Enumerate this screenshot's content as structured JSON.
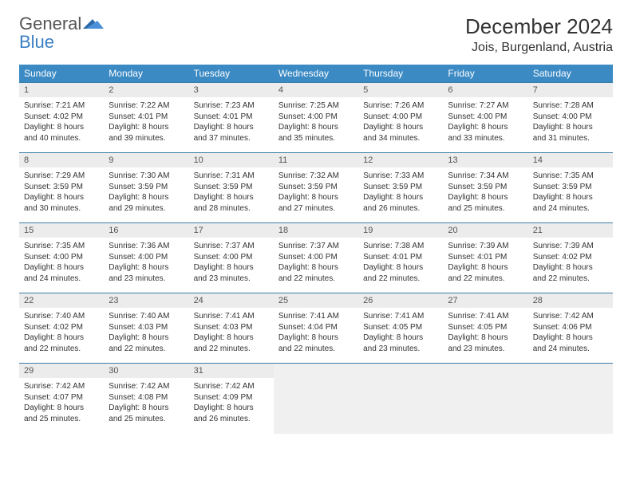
{
  "logo": {
    "line1": "General",
    "line2": "Blue"
  },
  "title": "December 2024",
  "location": "Jois, Burgenland, Austria",
  "colors": {
    "header_bg": "#3b8ac4",
    "header_text": "#ffffff",
    "row_border": "#3b7fa8",
    "daynum_bg": "#ececec",
    "logo_blue": "#3b7fc4",
    "text": "#333333"
  },
  "weekdays": [
    "Sunday",
    "Monday",
    "Tuesday",
    "Wednesday",
    "Thursday",
    "Friday",
    "Saturday"
  ],
  "days": [
    {
      "n": 1,
      "sunrise": "7:21 AM",
      "sunset": "4:02 PM",
      "daylight": "8 hours and 40 minutes."
    },
    {
      "n": 2,
      "sunrise": "7:22 AM",
      "sunset": "4:01 PM",
      "daylight": "8 hours and 39 minutes."
    },
    {
      "n": 3,
      "sunrise": "7:23 AM",
      "sunset": "4:01 PM",
      "daylight": "8 hours and 37 minutes."
    },
    {
      "n": 4,
      "sunrise": "7:25 AM",
      "sunset": "4:00 PM",
      "daylight": "8 hours and 35 minutes."
    },
    {
      "n": 5,
      "sunrise": "7:26 AM",
      "sunset": "4:00 PM",
      "daylight": "8 hours and 34 minutes."
    },
    {
      "n": 6,
      "sunrise": "7:27 AM",
      "sunset": "4:00 PM",
      "daylight": "8 hours and 33 minutes."
    },
    {
      "n": 7,
      "sunrise": "7:28 AM",
      "sunset": "4:00 PM",
      "daylight": "8 hours and 31 minutes."
    },
    {
      "n": 8,
      "sunrise": "7:29 AM",
      "sunset": "3:59 PM",
      "daylight": "8 hours and 30 minutes."
    },
    {
      "n": 9,
      "sunrise": "7:30 AM",
      "sunset": "3:59 PM",
      "daylight": "8 hours and 29 minutes."
    },
    {
      "n": 10,
      "sunrise": "7:31 AM",
      "sunset": "3:59 PM",
      "daylight": "8 hours and 28 minutes."
    },
    {
      "n": 11,
      "sunrise": "7:32 AM",
      "sunset": "3:59 PM",
      "daylight": "8 hours and 27 minutes."
    },
    {
      "n": 12,
      "sunrise": "7:33 AM",
      "sunset": "3:59 PM",
      "daylight": "8 hours and 26 minutes."
    },
    {
      "n": 13,
      "sunrise": "7:34 AM",
      "sunset": "3:59 PM",
      "daylight": "8 hours and 25 minutes."
    },
    {
      "n": 14,
      "sunrise": "7:35 AM",
      "sunset": "3:59 PM",
      "daylight": "8 hours and 24 minutes."
    },
    {
      "n": 15,
      "sunrise": "7:35 AM",
      "sunset": "4:00 PM",
      "daylight": "8 hours and 24 minutes."
    },
    {
      "n": 16,
      "sunrise": "7:36 AM",
      "sunset": "4:00 PM",
      "daylight": "8 hours and 23 minutes."
    },
    {
      "n": 17,
      "sunrise": "7:37 AM",
      "sunset": "4:00 PM",
      "daylight": "8 hours and 23 minutes."
    },
    {
      "n": 18,
      "sunrise": "7:37 AM",
      "sunset": "4:00 PM",
      "daylight": "8 hours and 22 minutes."
    },
    {
      "n": 19,
      "sunrise": "7:38 AM",
      "sunset": "4:01 PM",
      "daylight": "8 hours and 22 minutes."
    },
    {
      "n": 20,
      "sunrise": "7:39 AM",
      "sunset": "4:01 PM",
      "daylight": "8 hours and 22 minutes."
    },
    {
      "n": 21,
      "sunrise": "7:39 AM",
      "sunset": "4:02 PM",
      "daylight": "8 hours and 22 minutes."
    },
    {
      "n": 22,
      "sunrise": "7:40 AM",
      "sunset": "4:02 PM",
      "daylight": "8 hours and 22 minutes."
    },
    {
      "n": 23,
      "sunrise": "7:40 AM",
      "sunset": "4:03 PM",
      "daylight": "8 hours and 22 minutes."
    },
    {
      "n": 24,
      "sunrise": "7:41 AM",
      "sunset": "4:03 PM",
      "daylight": "8 hours and 22 minutes."
    },
    {
      "n": 25,
      "sunrise": "7:41 AM",
      "sunset": "4:04 PM",
      "daylight": "8 hours and 22 minutes."
    },
    {
      "n": 26,
      "sunrise": "7:41 AM",
      "sunset": "4:05 PM",
      "daylight": "8 hours and 23 minutes."
    },
    {
      "n": 27,
      "sunrise": "7:41 AM",
      "sunset": "4:05 PM",
      "daylight": "8 hours and 23 minutes."
    },
    {
      "n": 28,
      "sunrise": "7:42 AM",
      "sunset": "4:06 PM",
      "daylight": "8 hours and 24 minutes."
    },
    {
      "n": 29,
      "sunrise": "7:42 AM",
      "sunset": "4:07 PM",
      "daylight": "8 hours and 25 minutes."
    },
    {
      "n": 30,
      "sunrise": "7:42 AM",
      "sunset": "4:08 PM",
      "daylight": "8 hours and 25 minutes."
    },
    {
      "n": 31,
      "sunrise": "7:42 AM",
      "sunset": "4:09 PM",
      "daylight": "8 hours and 26 minutes."
    }
  ],
  "labels": {
    "sunrise": "Sunrise: ",
    "sunset": "Sunset: ",
    "daylight": "Daylight: "
  }
}
